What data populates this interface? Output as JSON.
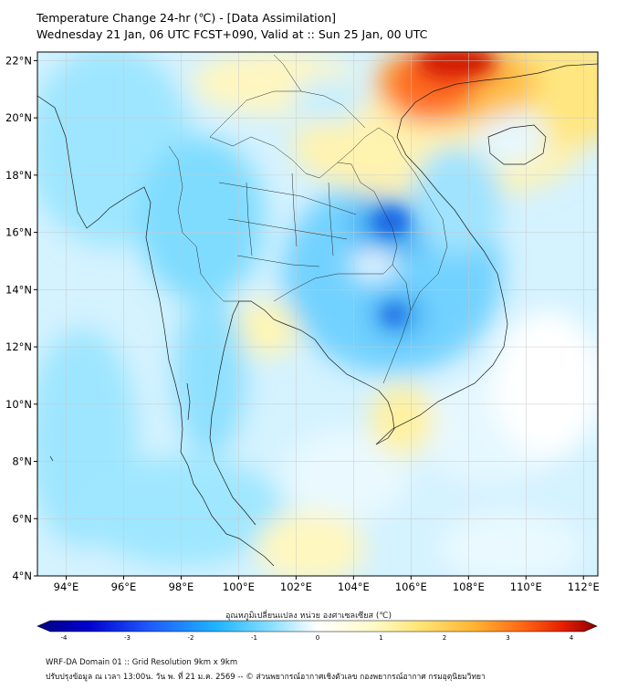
{
  "header": {
    "title_line1": "Temperature Change 24-hr (℃) - [Data Assimilation]",
    "title_line2": "Wednesday 21 Jan, 06 UTC FCST+090, Valid at :: Sun 25 Jan, 00 UTC"
  },
  "map": {
    "lon_range": [
      93,
      112.5
    ],
    "lat_range": [
      4,
      22.3
    ],
    "lat_labels": [
      "22°N",
      "20°N",
      "18°N",
      "16°N",
      "14°N",
      "12°N",
      "10°N",
      "8°N",
      "6°N",
      "4°N"
    ],
    "lat_values": [
      22,
      20,
      18,
      16,
      14,
      12,
      10,
      8,
      6,
      4
    ],
    "lon_labels": [
      "94°E",
      "96°E",
      "98°E",
      "100°E",
      "102°E",
      "104°E",
      "106°E",
      "108°E",
      "110°E",
      "112°E"
    ],
    "lon_values": [
      94,
      96,
      98,
      100,
      102,
      104,
      106,
      108,
      110,
      112
    ]
  },
  "colorbar": {
    "title": "อุณหภูมิเปลี่ยนแปลง หน่วย องศาเซลเซียส (℃)",
    "tick_labels": [
      "-4",
      "-3",
      "-2",
      "-1",
      "0",
      "1",
      "2",
      "3",
      "4"
    ],
    "tick_values": [
      -4,
      -3,
      -2,
      -1,
      0,
      1,
      2,
      3,
      4
    ],
    "colors": [
      "#000080",
      "#0000cd",
      "#1e5aff",
      "#1eb4ff",
      "#64dcff",
      "#c8f0ff",
      "#ffffff",
      "#fffac8",
      "#ffe678",
      "#ffb432",
      "#ff6414",
      "#e61e00",
      "#8b0000"
    ]
  },
  "footer": {
    "line1": "WRF-DA Domain 01 :: Grid Resolution 9km x 9km",
    "line2": "ปรับปรุงข้อมูล ณ เวลา 13:00น. วัน พ. ที่ 21 ม.ค. 2569 -- © ส่วนพยากรณ์อากาศเชิงตัวเลข กองพยากรณ์อากาศ กรมอุตุนิยมวิทยา"
  }
}
